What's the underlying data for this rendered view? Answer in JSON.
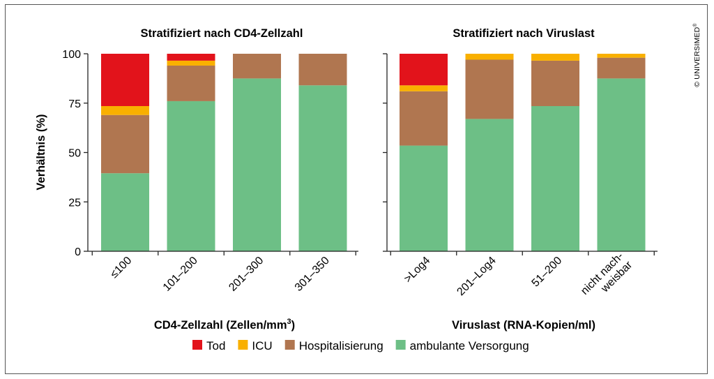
{
  "chart_data": [
    {
      "type": "bar",
      "stacked": true,
      "title": "Stratifiziert nach CD4-Zellzahl",
      "xlabel": "CD4-Zellzahl (Zellen/mm",
      "xlabel_sup": "3",
      "xlabel_end": ")",
      "ylabel": "Verhältnis (%)",
      "ylim": [
        0,
        100
      ],
      "yticks": [
        "0",
        "25",
        "50",
        "75",
        "100"
      ],
      "categories": [
        "≤100",
        "101–200",
        "201–300",
        "301–350"
      ],
      "series": [
        {
          "name": "ambulante Versorgung",
          "values": [
            39.5,
            76,
            87.5,
            84
          ]
        },
        {
          "name": "Hospitalisierung",
          "values": [
            29.5,
            18,
            12.5,
            16
          ]
        },
        {
          "name": "ICU",
          "values": [
            4.5,
            2.5,
            0,
            0
          ]
        },
        {
          "name": "Tod",
          "values": [
            26.5,
            3.5,
            0,
            0
          ]
        }
      ]
    },
    {
      "type": "bar",
      "stacked": true,
      "title": "Stratifiziert nach Viruslast",
      "xlabel": "Viruslast (RNA-Kopien/ml)",
      "ylim": [
        0,
        100
      ],
      "yticks": [
        "0",
        "25",
        "50",
        "75",
        "100"
      ],
      "categories": [
        ">Log4",
        "201–Log4",
        "51–200",
        "nicht nach-weisbar"
      ],
      "category_lines": [
        [
          ">Log4"
        ],
        [
          "201–Log4"
        ],
        [
          "51–200"
        ],
        [
          "nicht nach-",
          "weisbar"
        ]
      ],
      "series": [
        {
          "name": "ambulante Versorgung",
          "values": [
            53.5,
            67,
            73.5,
            87.5
          ]
        },
        {
          "name": "Hospitalisierung",
          "values": [
            27.5,
            30,
            23,
            10.5
          ]
        },
        {
          "name": "ICU",
          "values": [
            3,
            3,
            3.5,
            2
          ]
        },
        {
          "name": "Tod",
          "values": [
            16,
            0,
            0,
            0
          ]
        }
      ]
    }
  ],
  "legend": [
    {
      "name": "Tod",
      "color": "#e2131b"
    },
    {
      "name": "ICU",
      "color": "#f9b000"
    },
    {
      "name": "Hospitalisierung",
      "color": "#b07650"
    },
    {
      "name": "ambulante Versorgung",
      "color": "#6dbf86"
    }
  ],
  "colors": {
    "ambulante Versorgung": "#6dbf86",
    "Hospitalisierung": "#b07650",
    "ICU": "#f9b000",
    "Tod": "#e2131b"
  },
  "copyright": "© UNIVERSIMED",
  "copyright_mark": "®"
}
